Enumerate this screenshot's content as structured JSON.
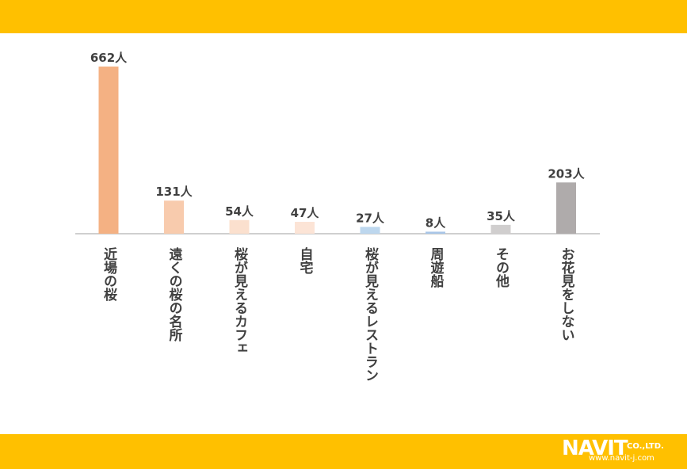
{
  "chart_data": {
    "type": "bar",
    "categories": [
      "近場の桜",
      "遠くの桜の名所",
      "桜が見えるカフェ",
      "自宅",
      "桜が見えるレストラン",
      "周遊船",
      "その他",
      "お花見をしない"
    ],
    "values": [
      662,
      131,
      54,
      47,
      27,
      8,
      35,
      203
    ],
    "data_labels": [
      "662人",
      "131人",
      "54人",
      "47人",
      "27人",
      "8人",
      "35人",
      "203人"
    ],
    "bar_colors": [
      "#F4B183",
      "#F8CBAD",
      "#FBE0CE",
      "#FCE4D6",
      "#BDD7EE",
      "#A9C6E8",
      "#D0CECE",
      "#AFABAB"
    ],
    "title": "",
    "xlabel": "",
    "ylabel": "",
    "ylim": [
      0,
      700
    ],
    "grid": false,
    "legend": "none"
  },
  "header": {
    "band_color": "#FFC000"
  },
  "footer": {
    "band_color": "#FFC000",
    "logo_name": "NAVIT",
    "logo_suffix": "CO.,LTD.",
    "logo_url": "www.navit-j.com"
  }
}
